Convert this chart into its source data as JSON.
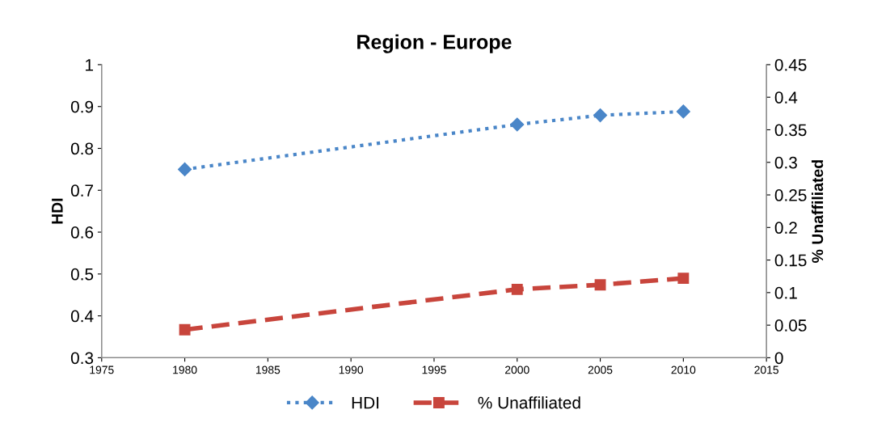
{
  "chart_data": {
    "type": "line",
    "title": "Region - Europe",
    "ylabel": "HDI",
    "y2label": "% Unaffiliated",
    "x": [
      1980,
      2000,
      2005,
      2010
    ],
    "series": [
      {
        "name": "HDI",
        "color": "#4a86c8",
        "values": [
          0.75,
          0.857,
          0.879,
          0.888
        ],
        "marker": "diamond",
        "line_style": "dotted"
      },
      {
        "name": "% Unaffiliated",
        "color": "#c8453c",
        "values": [
          0.043,
          0.105,
          0.112,
          0.122
        ],
        "axis": "y2",
        "marker": "square",
        "line_style": "dashed"
      }
    ],
    "xlim": [
      1975,
      2015
    ],
    "xticks": [
      1975,
      1980,
      1985,
      1990,
      1995,
      2000,
      2005,
      2010,
      2015
    ],
    "ylim": [
      0.3,
      1
    ],
    "yticks": [
      0.3,
      0.4,
      0.5,
      0.6,
      0.7,
      0.8,
      0.9,
      1
    ],
    "y2lim": [
      0,
      0.45
    ],
    "y2ticks": [
      0,
      0.05,
      0.1,
      0.15,
      0.2,
      0.25,
      0.3,
      0.35,
      0.4,
      0.45
    ],
    "legend": "bottom",
    "grid": false
  }
}
